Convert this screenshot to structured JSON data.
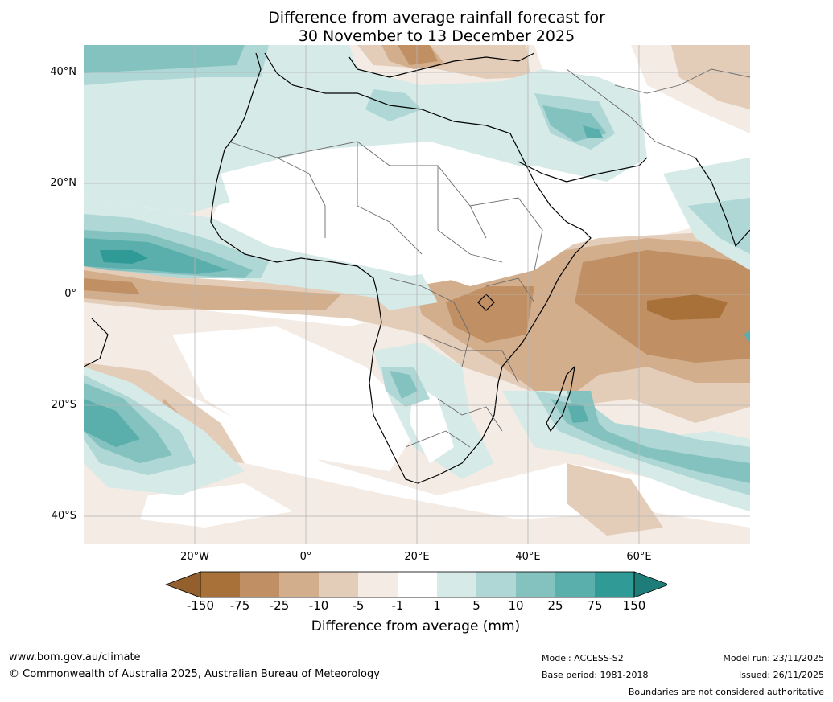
{
  "title": {
    "line1": "Difference from average rainfall forecast for",
    "line2": "30 November to 13 December 2025"
  },
  "axes": {
    "lat_labels": [
      "40°N",
      "20°N",
      "0°",
      "20°S",
      "40°S"
    ],
    "lon_labels": [
      "20°W",
      "0°",
      "20°E",
      "40°E",
      "60°E"
    ]
  },
  "colorbar": {
    "ticks": [
      "-150",
      "-75",
      "-25",
      "-10",
      "-5",
      "-1",
      "1",
      "5",
      "10",
      "25",
      "75",
      "150"
    ],
    "colors": [
      "#a8713a",
      "#c09064",
      "#d2ae8c",
      "#e3cdb9",
      "#f3ebe4",
      "#ffffff",
      "#d6eae8",
      "#aed7d5",
      "#84c2c0",
      "#5aaeab",
      "#2f9a96"
    ],
    "under_color": "#935f2c",
    "over_color": "#1f7d79",
    "label": "Difference from average (mm)"
  },
  "footer": {
    "website": "www.bom.gov.au/climate",
    "copyright": "© Commonwealth of Australia 2025, Australian Bureau of Meteorology",
    "model": "Model: ACCESS-S2",
    "base_period": "Base period: 1981-2018",
    "model_run": "Model run: 23/11/2025",
    "issued": "Issued: 26/11/2025",
    "disclaimer": "Boundaries are not considered authoritative"
  }
}
